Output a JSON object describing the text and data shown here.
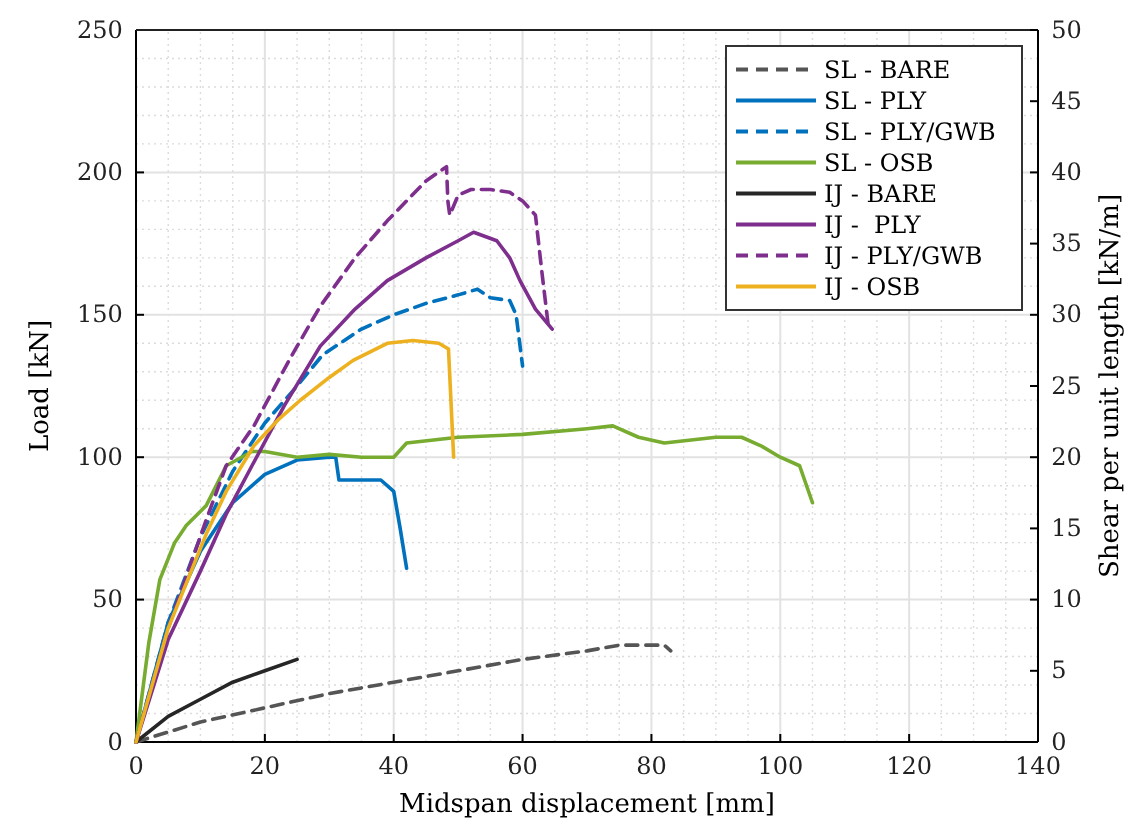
{
  "chart_data": {
    "type": "line",
    "xlabel": "Midspan displacement [mm]",
    "ylabel": "Load [kN]",
    "y2label": "Shear per unit length [kN/m]",
    "xlim": [
      0,
      140
    ],
    "xticks": [
      0,
      20,
      40,
      60,
      80,
      100,
      120,
      140
    ],
    "ylim": [
      0,
      250
    ],
    "yticks": [
      0,
      50,
      100,
      150,
      200,
      250
    ],
    "y2lim": [
      0,
      50
    ],
    "y2ticks": [
      0,
      5,
      10,
      15,
      20,
      25,
      30,
      35,
      40,
      45,
      50
    ],
    "grid": true,
    "legend": "top right",
    "series": [
      {
        "name": "SL - BARE",
        "color": "#555555",
        "line_style": "dashed",
        "x": [
          0,
          10,
          20,
          30,
          40,
          50,
          60,
          70,
          75,
          82,
          83
        ],
        "values": [
          0,
          7,
          12,
          17,
          21,
          25,
          29,
          32,
          34,
          34,
          32
        ]
      },
      {
        "name": "SL - PLY",
        "color": "#0072bd",
        "line_style": "solid",
        "x": [
          0,
          5,
          10,
          15,
          20,
          25,
          30,
          31,
          31.5,
          35,
          38,
          40,
          41,
          42
        ],
        "values": [
          0,
          42,
          67,
          84,
          94,
          99,
          100,
          100,
          92,
          92,
          92,
          88,
          75,
          61
        ]
      },
      {
        "name": "SL - PLY/GWB",
        "color": "#0072bd",
        "line_style": "dashed",
        "x": [
          0,
          5,
          10,
          15,
          20,
          25,
          29,
          35,
          40,
          45,
          50,
          53,
          55,
          58,
          59,
          60
        ],
        "values": [
          0,
          42,
          72,
          95,
          112,
          125,
          136,
          145,
          150,
          154,
          157,
          159,
          156,
          155,
          150,
          132
        ]
      },
      {
        "name": "SL - OSB",
        "color": "#77ac30",
        "line_style": "solid",
        "x": [
          0,
          2,
          3.7,
          6,
          7.8,
          10.9,
          14,
          18,
          20,
          25,
          30,
          35,
          40,
          42,
          50,
          60,
          70,
          74,
          78,
          82,
          90,
          94,
          97,
          100,
          103,
          105
        ],
        "values": [
          0,
          35,
          57,
          70,
          76,
          83,
          97,
          102,
          102,
          100,
          101,
          100,
          100,
          105,
          107,
          108,
          110,
          111,
          107,
          105,
          107,
          107,
          104,
          100,
          97,
          84
        ]
      },
      {
        "name": "IJ - BARE",
        "color": "#262626",
        "line_style": "solid",
        "x": [
          0,
          5,
          10,
          15,
          20,
          25
        ],
        "values": [
          0,
          9,
          15,
          21,
          25,
          29
        ]
      },
      {
        "name": "IJ -  PLY",
        "color": "#7e2f8e",
        "line_style": "solid",
        "x": [
          0,
          5,
          10,
          14,
          18,
          23,
          28.6,
          34,
          39,
          45,
          50,
          52.4,
          56,
          58,
          59.6,
          62,
          64.6
        ],
        "values": [
          0,
          36,
          60,
          80,
          97,
          118,
          139,
          152,
          162,
          170,
          176,
          179,
          176,
          170,
          162,
          152,
          145
        ]
      },
      {
        "name": "IJ - PLY/GWB",
        "color": "#7e2f8e",
        "line_style": "dashed",
        "x": [
          0,
          5,
          10.9,
          14,
          18.3,
          24,
          28.6,
          34,
          39,
          45,
          48.2,
          48.4,
          48.7,
          50,
          52,
          55,
          58,
          60,
          62,
          63,
          64
        ],
        "values": [
          0,
          40,
          78,
          97,
          111,
          135,
          153,
          170,
          183,
          197,
          202,
          190,
          185,
          192,
          194,
          194,
          193,
          190,
          185,
          165,
          146
        ]
      },
      {
        "name": "IJ - OSB",
        "color": "#edb120",
        "line_style": "solid",
        "x": [
          0,
          5,
          10.9,
          14,
          18.3,
          22,
          25.5,
          30,
          33.7,
          39,
          43,
          47,
          48.5,
          49.3
        ],
        "values": [
          0,
          40,
          73,
          88,
          104,
          113,
          120,
          128,
          134,
          140,
          141,
          140,
          138,
          100
        ]
      }
    ]
  }
}
